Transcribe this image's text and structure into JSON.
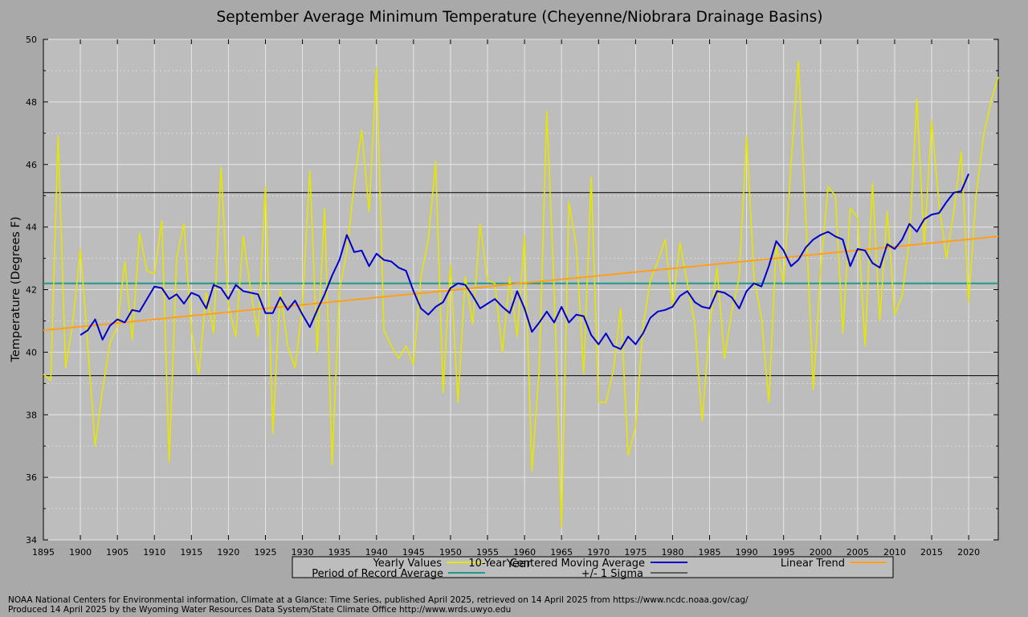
{
  "footer": {
    "line1": "NOAA National Centers for Environmental information, Climate at a Glance: Time Series, published April 2025, retrieved on 14 April 2025 from https://www.ncdc.noaa.gov/cag/",
    "line2": "Produced 14 April 2025 by the Wyoming Water Resources Data System/State Climate Office http://www.wrds.uwyo.edu"
  },
  "chart_data": {
    "type": "line",
    "title": "September Average Minimum Temperature (Cheyenne/Niobrara Drainage Basins)",
    "xlabel": "Year",
    "ylabel": "Temperature (Degrees F)",
    "xlim": [
      1895,
      2024
    ],
    "ylim": [
      34,
      50
    ],
    "x_ticks": [
      "1895",
      "1900",
      "1905",
      "1910",
      "1915",
      "1920",
      "1925",
      "1930",
      "1935",
      "1940",
      "1945",
      "1950",
      "1955",
      "1960",
      "1965",
      "1970",
      "1975",
      "1980",
      "1985",
      "1990",
      "1995",
      "2000",
      "2005",
      "2010",
      "2015",
      "2020"
    ],
    "y_ticks": [
      "34",
      "36",
      "38",
      "40",
      "42",
      "44",
      "46",
      "48",
      "50"
    ],
    "grid": true,
    "legend_position": "bottom",
    "colors": {
      "yearly": "#e6e600",
      "moving_average": "#0000c8",
      "trend": "#ff9f1c",
      "record_average": "#1f9a8a",
      "sigma": "#000000",
      "plot_background": "#bdbdbd",
      "page_background": "#a9a9a9"
    },
    "legend": {
      "yearly": "Yearly Values",
      "moving_average": "10-Year Centered Moving Average",
      "trend": "Linear Trend",
      "record_average": "Period of Record Average",
      "sigma": "+/- 1 Sigma"
    },
    "series": [
      {
        "name": "Yearly Values",
        "start_year": 1895,
        "values": [
          39.3,
          39.1,
          46.9,
          39.5,
          41.0,
          43.3,
          40.2,
          37.0,
          38.8,
          40.3,
          40.8,
          42.9,
          40.4,
          43.8,
          42.6,
          42.5,
          44.2,
          36.5,
          43.0,
          44.1,
          40.7,
          39.3,
          41.9,
          40.6,
          45.9,
          41.5,
          40.5,
          43.7,
          42.0,
          40.5,
          45.3,
          37.4,
          42.0,
          40.2,
          39.5,
          41.5,
          45.8,
          40.0,
          44.6,
          36.4,
          42.0,
          43.2,
          45.4,
          47.1,
          44.5,
          49.1,
          40.7,
          40.2,
          39.8,
          40.2,
          39.6,
          42.4,
          43.6,
          46.1,
          38.7,
          42.8,
          38.4,
          42.4,
          40.9,
          44.1,
          42.3,
          42.2,
          40.0,
          42.4,
          40.5,
          43.7,
          36.2,
          39.5,
          47.7,
          42.0,
          34.4,
          44.8,
          43.4,
          39.3,
          45.6,
          38.4,
          38.4,
          39.4,
          41.4,
          36.7,
          37.6,
          40.8,
          42.3,
          42.9,
          43.6,
          41.5,
          43.5,
          42.2,
          40.9,
          37.8,
          40.8,
          42.7,
          39.8,
          41.3,
          42.4,
          46.9,
          42.4,
          41.1,
          38.4,
          43.4,
          42.2,
          46.0,
          49.3,
          44.3,
          38.8,
          42.6,
          45.3,
          45.0,
          40.6,
          44.6,
          44.3,
          40.2,
          45.4,
          41.0,
          44.5,
          41.2,
          41.8,
          43.6,
          48.1,
          43.4,
          47.4,
          44.7,
          43.0,
          44.5,
          46.4,
          41.6,
          45.0,
          46.9,
          48.0,
          48.8
        ]
      },
      {
        "name": "10-Year Centered Moving Average",
        "start_year": 1900,
        "values": [
          40.55,
          40.7,
          41.05,
          40.4,
          40.85,
          41.05,
          40.95,
          41.35,
          41.3,
          41.7,
          42.1,
          42.05,
          41.7,
          41.85,
          41.55,
          41.9,
          41.8,
          41.4,
          42.15,
          42.05,
          41.7,
          42.15,
          41.95,
          41.9,
          41.85,
          41.25,
          41.25,
          41.75,
          41.35,
          41.65,
          41.2,
          40.8,
          41.35,
          41.85,
          42.45,
          42.95,
          43.75,
          43.2,
          43.25,
          42.75,
          43.15,
          42.95,
          42.9,
          42.7,
          42.6,
          41.95,
          41.4,
          41.2,
          41.45,
          41.6,
          42.05,
          42.2,
          42.15,
          41.8,
          41.4,
          41.55,
          41.7,
          41.45,
          41.25,
          41.95,
          41.4,
          40.65,
          40.95,
          41.3,
          40.95,
          41.45,
          40.95,
          41.2,
          41.15,
          40.55,
          40.25,
          40.6,
          40.2,
          40.1,
          40.5,
          40.25,
          40.6,
          41.1,
          41.3,
          41.35,
          41.45,
          41.8,
          41.95,
          41.6,
          41.45,
          41.4,
          41.95,
          41.9,
          41.75,
          41.4,
          41.95,
          42.2,
          42.1,
          42.75,
          43.55,
          43.25,
          42.75,
          42.95,
          43.35,
          43.6,
          43.75,
          43.85,
          43.7,
          43.6,
          42.75,
          43.3,
          43.25,
          42.85,
          42.7,
          43.45,
          43.3,
          43.6,
          44.1,
          43.85,
          44.25,
          44.4,
          44.45,
          44.8,
          45.1,
          45.15,
          45.7
        ]
      },
      {
        "name": "Linear Trend",
        "points": [
          [
            1895,
            40.7
          ],
          [
            2024,
            43.7
          ]
        ]
      },
      {
        "name": "Period of Record Average",
        "value": 42.2
      },
      {
        "name": "+/- 1 Sigma",
        "upper": 45.1,
        "lower": 39.25
      }
    ]
  }
}
